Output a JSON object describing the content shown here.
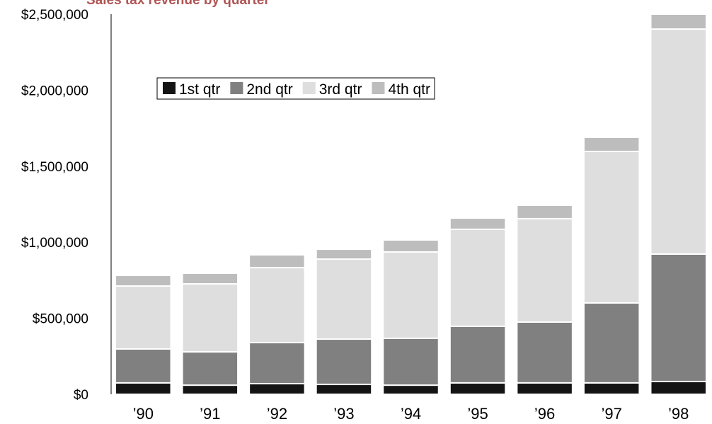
{
  "chart_data": {
    "type": "stacked-bar",
    "title": "Sales tax revenue by quarter",
    "categories": [
      "’90",
      "’91",
      "’92",
      "’93",
      "’94",
      "’95",
      "’96",
      "’97",
      "’98"
    ],
    "series": [
      {
        "name": "1st qtr",
        "color": "#141414",
        "values": [
          75000,
          60000,
          70000,
          65000,
          60000,
          75000,
          75000,
          75000,
          84000
        ]
      },
      {
        "name": "2nd qtr",
        "color": "#808080",
        "values": [
          223000,
          219000,
          270000,
          298000,
          308000,
          372000,
          400000,
          526000,
          838000
        ]
      },
      {
        "name": "3rd qtr",
        "color": "#dedede",
        "values": [
          414000,
          447000,
          493000,
          526000,
          568000,
          638000,
          680000,
          996000,
          1480000
        ]
      },
      {
        "name": "4th qtr",
        "color": "#bdbdbd",
        "values": [
          70000,
          70000,
          84000,
          65000,
          79000,
          74000,
          88000,
          93000,
          98000
        ]
      }
    ],
    "ylim": [
      0,
      2500000
    ],
    "yticks": [
      {
        "value": 0,
        "label": "$0"
      },
      {
        "value": 500000,
        "label": "$500,000"
      },
      {
        "value": 1000000,
        "label": "$1,000,000"
      },
      {
        "value": 1500000,
        "label": "$1,500,000"
      },
      {
        "value": 2000000,
        "label": "$2,000,000"
      },
      {
        "value": 2500000,
        "label": "$2,500,000"
      }
    ],
    "grid": false,
    "legend": "top-left"
  }
}
